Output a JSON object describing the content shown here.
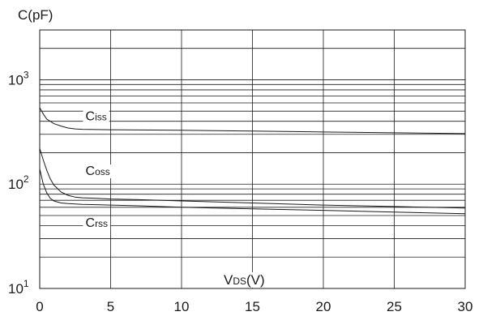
{
  "chart_data": {
    "type": "line",
    "ylabel": "C(pF)",
    "xlabel": "VDS(V)",
    "xlabel_main": "V",
    "xlabel_sub": "DS",
    "xlabel_unit": "(V)",
    "xlim": [
      0,
      30
    ],
    "ylim": [
      10,
      3000
    ],
    "yscale": "log",
    "grid": true,
    "x_ticks": [
      0,
      5,
      10,
      15,
      20,
      25,
      30
    ],
    "x_tick_labels": [
      "0",
      "5",
      "10",
      "15",
      "20",
      "25",
      "30"
    ],
    "y_ticks": [
      {
        "value": 10,
        "base": "10",
        "exp": "1"
      },
      {
        "value": 100,
        "base": "10",
        "exp": "2"
      },
      {
        "value": 1000,
        "base": "10",
        "exp": "3"
      }
    ],
    "series": [
      {
        "name": "Ciss",
        "label_main": "C",
        "label_sub": "iss",
        "label_at": 3,
        "x": [
          0,
          0.25,
          0.5,
          1,
          1.5,
          2,
          2.5,
          3,
          4,
          5,
          7,
          10,
          15,
          20,
          25,
          30
        ],
        "y": [
          540,
          470,
          420,
          380,
          360,
          345,
          338,
          335,
          333,
          332,
          330,
          328,
          322,
          316,
          310,
          305
        ]
      },
      {
        "name": "Coss",
        "label_main": "C",
        "label_sub": "oss",
        "label_at": 3,
        "x": [
          0,
          0.25,
          0.5,
          0.75,
          1,
          1.5,
          2,
          2.5,
          3,
          4,
          5,
          7,
          10,
          15,
          20,
          25,
          30
        ],
        "y": [
          220,
          170,
          135,
          112,
          98,
          84,
          78,
          75,
          74,
          73,
          72,
          71,
          69,
          66,
          63,
          61,
          59
        ]
      },
      {
        "name": "Crss",
        "label_main": "C",
        "label_sub": "rss",
        "label_at": 3,
        "x": [
          0,
          0.25,
          0.5,
          0.75,
          1,
          1.5,
          2,
          3,
          4,
          5,
          7,
          10,
          15,
          20,
          25,
          30
        ],
        "y": [
          140,
          100,
          82,
          73,
          69,
          66,
          65,
          64,
          63.5,
          63,
          62,
          60,
          58,
          56,
          54,
          52
        ]
      }
    ]
  }
}
